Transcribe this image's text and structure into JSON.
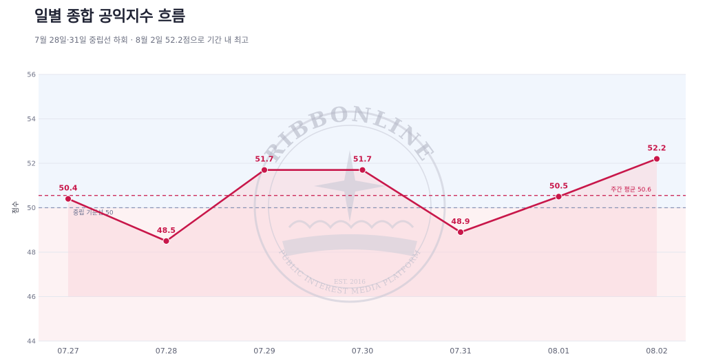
{
  "header": {
    "title": "일별 종합 공익지수 흐름",
    "subtitle": "7월 28일·31일 중립선 하회 · 8월 2일 52.2점으로 기간 내 최고"
  },
  "watermark": {
    "name": "RIBBONLINE",
    "est": "EST. 2016",
    "tagline": "PUBLIC INTEREST MEDIA PLATFORM"
  },
  "colors": {
    "line": "#c8174a",
    "neutral_line": "#8a93b5",
    "average_line": "#c8174a",
    "above_band": "#f1f6fd",
    "below_band": "#fdf2f3",
    "area_fill": "#f9d7dd"
  },
  "chart_data": {
    "type": "line",
    "categories": [
      "07.27",
      "07.28",
      "07.29",
      "07.30",
      "07.31",
      "08.01",
      "08.02"
    ],
    "series": [
      {
        "values": [
          50.4,
          48.5,
          51.7,
          51.7,
          48.9,
          50.5,
          52.2
        ]
      }
    ],
    "data_labels": [
      "50.4",
      "48.5",
      "51.7",
      "51.7",
      "48.9",
      "50.5",
      "52.2"
    ],
    "ylabel": "점수",
    "ylim": [
      44,
      56
    ],
    "yticks": [
      44,
      46,
      48,
      50,
      52,
      54,
      56
    ],
    "area_baseline": 46,
    "reference_lines": [
      {
        "label": "중립 기준선 50",
        "value": 50,
        "style": "dashed"
      },
      {
        "label": "주간 평균 50.6",
        "value": 50.55,
        "style": "dashed"
      }
    ],
    "grid": true,
    "legend": "none"
  }
}
